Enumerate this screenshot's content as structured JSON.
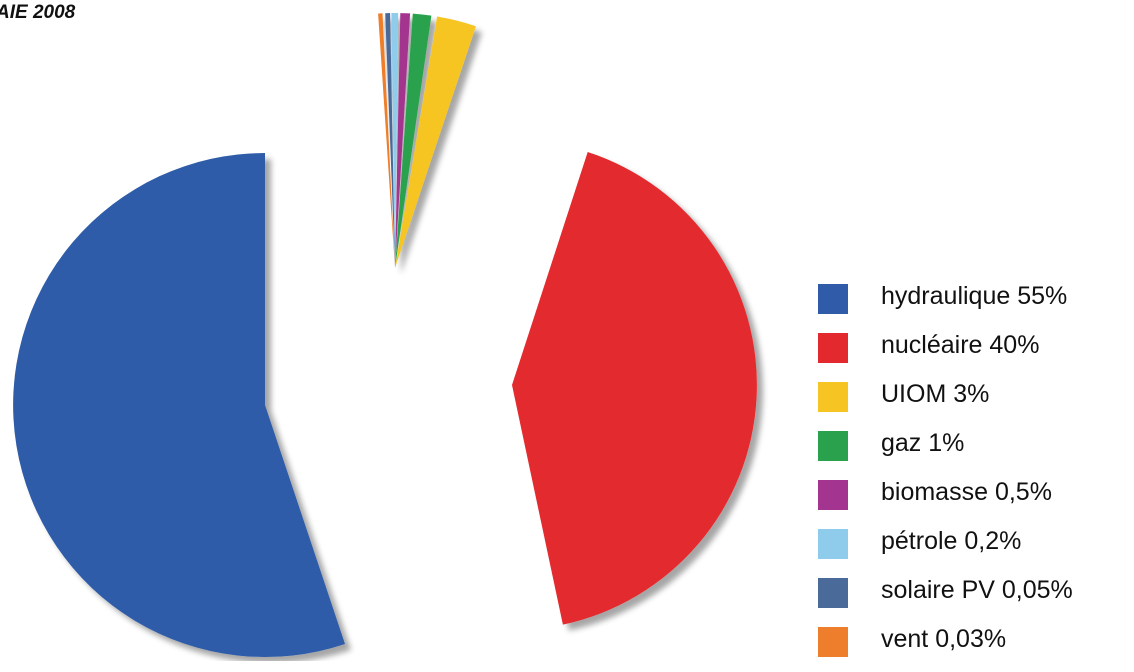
{
  "title": "AIE 2008",
  "chart_data": {
    "type": "pie",
    "title": "AIE 2008",
    "slices": [
      {
        "label": "hydraulique 55%",
        "value": 55,
        "color": "#2f5ba8"
      },
      {
        "label": "nucléaire 40%",
        "value": 40,
        "color": "#e3292d"
      },
      {
        "label": "UIOM 3%",
        "value": 3,
        "color": "#f6c523"
      },
      {
        "label": "gaz 1%",
        "value": 1,
        "color": "#2aa14d"
      },
      {
        "label": "biomasse 0,5%",
        "value": 0.5,
        "color": "#a3348f"
      },
      {
        "label": "pétrole 0,2%",
        "value": 0.2,
        "color": "#8fcbea"
      },
      {
        "label": "solaire PV 0,05%",
        "value": 0.05,
        "color": "#4a6b99"
      },
      {
        "label": "vent 0,03%",
        "value": 0.03,
        "color": "#ee7e2c"
      }
    ],
    "legend_position": "right",
    "exploded": true
  }
}
